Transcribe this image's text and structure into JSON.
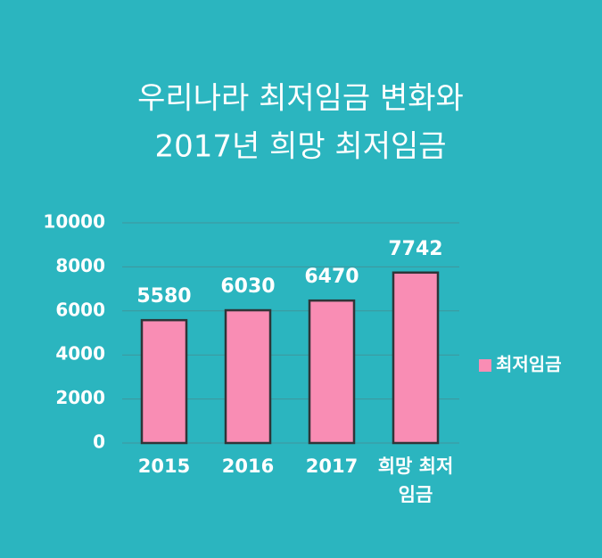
{
  "chart_data": {
    "type": "bar",
    "title": [
      "우리나라 최저임금 변화와",
      "2017년 희망 최저임금"
    ],
    "categories": [
      "2015",
      "2016",
      "2017",
      "희망 최저임금"
    ],
    "series": [
      {
        "name": "최저임금",
        "color": "#f98db4",
        "values": [
          5580,
          6030,
          6470,
          7742
        ]
      }
    ],
    "ylim": [
      0,
      10000
    ],
    "yticks": [
      0,
      2000,
      4000,
      6000,
      8000,
      10000
    ],
    "grid": true,
    "legend": "right"
  }
}
